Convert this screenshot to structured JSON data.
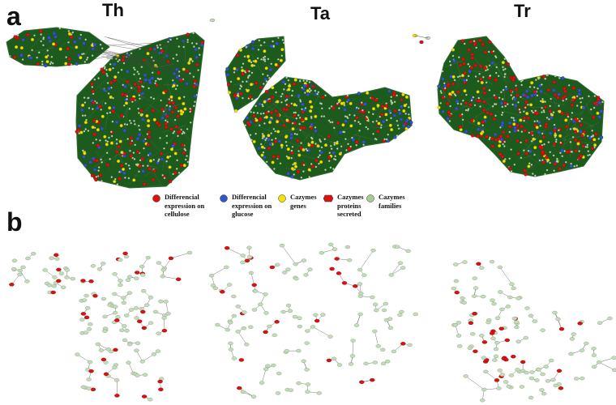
{
  "panels": {
    "a": {
      "label": "a"
    },
    "b": {
      "label": "b"
    }
  },
  "species": [
    {
      "label": "Th"
    },
    {
      "label": "Ta"
    },
    {
      "label": "Tr"
    }
  ],
  "legend": {
    "items": [
      {
        "text": "Differencial\nexpression on\ncellulose",
        "color": "#dd1111",
        "shape": "circle"
      },
      {
        "text": "Differencial\nexpression on\nglucose",
        "color": "#3355cc",
        "shape": "circle"
      },
      {
        "text": "Cazymes\ngenes",
        "color": "#f4e100",
        "shape": "circle"
      },
      {
        "text": "Cazymes\nproteins\nsecreted",
        "color": "#dd1111",
        "shape": "hexagon"
      },
      {
        "text": "Cazymes\nfamilies",
        "color": "#a8cd94",
        "shape": "circle"
      }
    ]
  },
  "colors": {
    "network_dense": "#1d5a1d",
    "edge": "#555555",
    "node_light": "#c5dcbc",
    "node_light_stroke": "#7f9777",
    "node_red": "#dd1111",
    "node_blue": "#3355cc",
    "node_yellow": "#f4e100"
  }
}
